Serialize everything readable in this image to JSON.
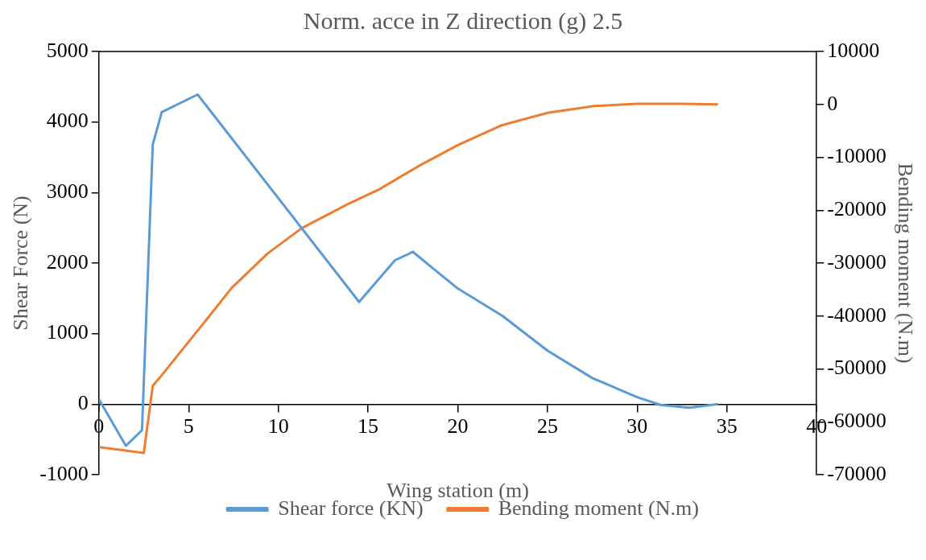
{
  "chart_data": {
    "type": "line",
    "title": "Norm. acce in Z direction (g) 2.5",
    "xlabel": "Wing station (m)",
    "ylabel": "Shear Force (N)",
    "y2label": "Bending moment (N.m)",
    "xlim": [
      0,
      40
    ],
    "xticks": [
      0,
      5,
      10,
      15,
      20,
      25,
      30,
      35,
      40
    ],
    "ylim": [
      -1000,
      5000
    ],
    "yticks": [
      -1000,
      0,
      1000,
      2000,
      3000,
      4000,
      5000
    ],
    "y2lim": [
      -70000,
      10000
    ],
    "y2ticks": [
      -70000,
      -60000,
      -50000,
      -40000,
      -30000,
      -20000,
      -10000,
      0,
      10000
    ],
    "grid": false,
    "legend": "bottom",
    "marker": "none",
    "line_style": "solid",
    "series": [
      {
        "name": "Shear force (KN)",
        "color": "#5b9bd5",
        "x": [
          0,
          1.5,
          2.4,
          3,
          3.5,
          5.5,
          14.5,
          16.5,
          17.5,
          18.5,
          20,
          22.5,
          25,
          27.5,
          30,
          31.3,
          32.9,
          34.5
        ],
        "values": [
          70,
          -590,
          -370,
          3680,
          4140,
          4390,
          1450,
          2040,
          2160,
          1950,
          1640,
          1250,
          760,
          370,
          100,
          -10,
          -50,
          0
        ]
      },
      {
        "name": "Bending moment (N.m)",
        "color": "#ed7d31",
        "axis": "y2",
        "x": [
          0,
          1,
          2.5,
          3,
          3.5,
          5.8,
          7.4,
          9.4,
          11.3,
          13.9,
          15.6,
          17.9,
          20,
          22.4,
          25,
          27.6,
          30,
          32.5,
          34.5
        ],
        "values": [
          -64800,
          -65200,
          -65900,
          -53200,
          -51200,
          -41500,
          -34700,
          -28200,
          -23400,
          -18800,
          -16100,
          -11500,
          -7700,
          -4000,
          -1600,
          -300,
          100,
          100,
          0
        ]
      }
    ]
  }
}
